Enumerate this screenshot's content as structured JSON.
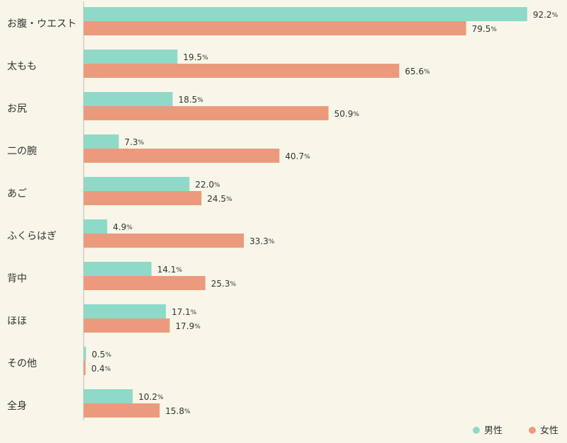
{
  "chart_data": {
    "type": "bar",
    "orientation": "horizontal",
    "categories": [
      "お腹・ウエスト",
      "太もも",
      "お尻",
      "二の腕",
      "あご",
      "ふくらはぎ",
      "背中",
      "ほほ",
      "その他",
      "全身"
    ],
    "series": [
      {
        "name": "男性",
        "color": "#8fd9c9",
        "values": [
          92.2,
          19.5,
          18.5,
          7.3,
          22.0,
          4.9,
          14.1,
          17.1,
          0.5,
          10.2
        ]
      },
      {
        "name": "女性",
        "color": "#ec9a7e",
        "values": [
          79.5,
          65.6,
          50.9,
          40.7,
          24.5,
          33.3,
          25.3,
          17.9,
          0.4,
          15.8
        ]
      }
    ],
    "unit": "%",
    "xlim": [
      0,
      100
    ],
    "grid": false,
    "legend_position": "bottom-right"
  },
  "colors": {
    "background": "#f8f6e8",
    "axis": "#bbbbbb",
    "text": "#333333"
  }
}
